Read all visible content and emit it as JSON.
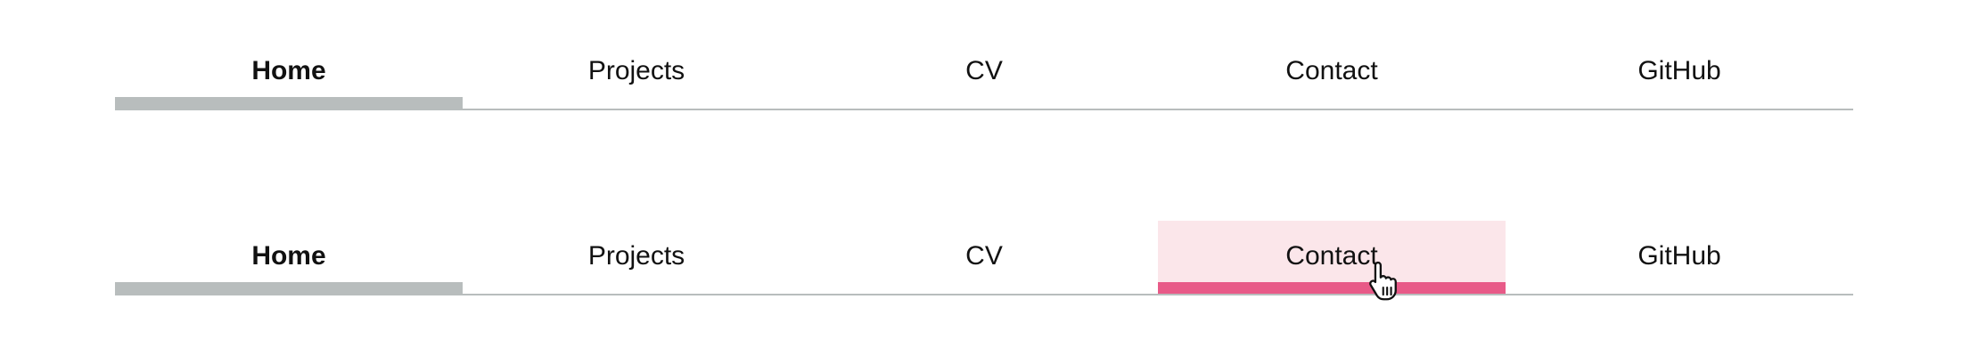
{
  "nav_top": {
    "items": [
      {
        "label": "Home"
      },
      {
        "label": "Projects"
      },
      {
        "label": "CV"
      },
      {
        "label": "Contact"
      },
      {
        "label": "GitHub"
      }
    ]
  },
  "nav_bottom": {
    "items": [
      {
        "label": "Home"
      },
      {
        "label": "Projects"
      },
      {
        "label": "CV"
      },
      {
        "label": "Contact"
      },
      {
        "label": "GitHub"
      }
    ]
  },
  "colors": {
    "active_indicator": "#b8bdbd",
    "hover_background": "#fbe6ea",
    "hover_indicator": "#e85a88",
    "divider": "#b8bdbd"
  },
  "cursor": {
    "icon": "hand-pointer-icon"
  }
}
